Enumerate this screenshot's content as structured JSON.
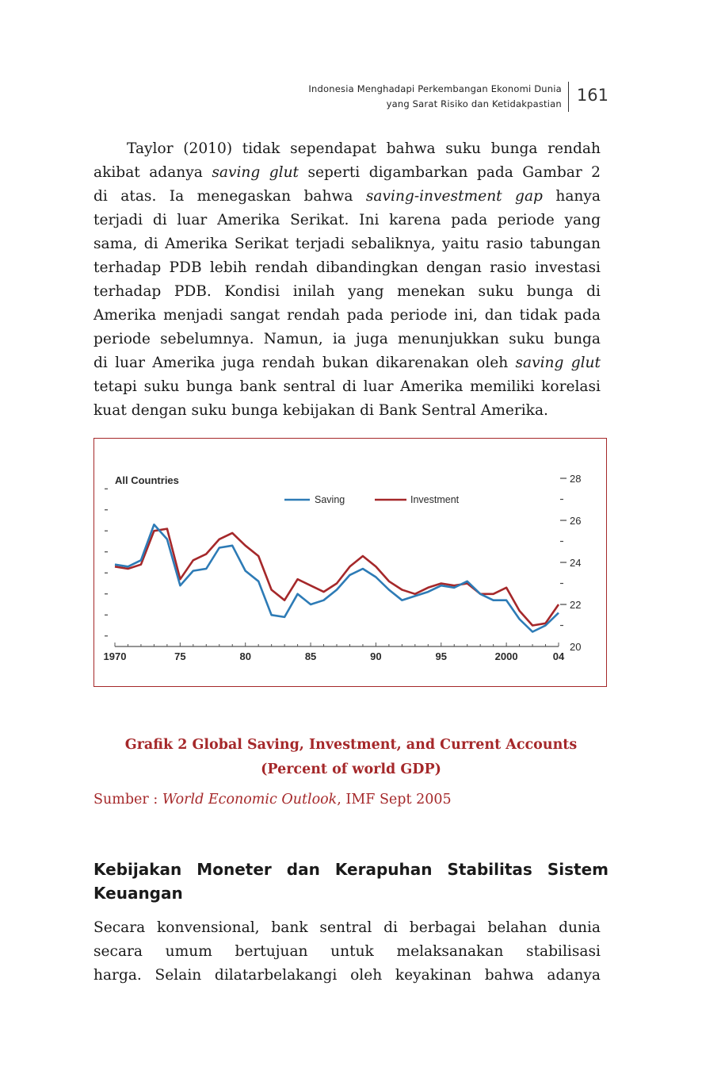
{
  "header": {
    "line1": "Indonesia Menghadapi Perkembangan Ekonomi Dunia",
    "line2": "yang Sarat Risiko dan Ketidakpastian",
    "page_number": "161"
  },
  "paragraph1": {
    "l1": "Taylor (2010) tidak sependapat bahwa suku bunga rendah",
    "l2a": "akibat adanya ",
    "l2b": "saving glut",
    "l2c": " seperti digambarkan pada Gambar 2",
    "l3a": "di atas. Ia menegaskan bahwa ",
    "l3b": "saving-investment gap",
    "l3c": " hanya",
    "l4": "terjadi di luar Amerika Serikat. Ini karena pada periode yang",
    "l5": "sama, di Amerika Serikat terjadi sebaliknya, yaitu rasio tabungan",
    "l6": "terhadap PDB lebih rendah dibandingkan dengan rasio investasi",
    "l7": "terhadap PDB. Kondisi inilah yang menekan suku bunga di",
    "l8": "Amerika menjadi sangat rendah pada periode ini, dan tidak pada",
    "l9": "periode sebelumnya. Namun, ia juga menunjukkan suku bunga",
    "l10a": "di luar Amerika juga rendah bukan dikarenakan oleh ",
    "l10b": "saving glut",
    "l11": "tetapi suku bunga bank sentral di luar Amerika memiliki korelasi",
    "l12": "kuat dengan suku bunga kebijakan di Bank Sentral Amerika."
  },
  "chart_data": {
    "type": "line",
    "title": "All Countries",
    "x": [
      1970,
      1971,
      1972,
      1973,
      1974,
      1975,
      1976,
      1977,
      1978,
      1979,
      1980,
      1981,
      1982,
      1983,
      1984,
      1985,
      1986,
      1987,
      1988,
      1989,
      1990,
      1991,
      1992,
      1993,
      1994,
      1995,
      1996,
      1997,
      1998,
      1999,
      2000,
      2001,
      2002,
      2003,
      2004
    ],
    "series": [
      {
        "name": "Saving",
        "color": "#2d7bb6",
        "values": [
          23.9,
          23.8,
          24.1,
          25.8,
          25.1,
          22.9,
          23.6,
          23.7,
          24.7,
          24.8,
          23.6,
          23.1,
          21.5,
          21.4,
          22.5,
          22.0,
          22.2,
          22.7,
          23.4,
          23.7,
          23.3,
          22.7,
          22.2,
          22.4,
          22.6,
          22.9,
          22.8,
          23.1,
          22.5,
          22.2,
          22.2,
          21.3,
          20.7,
          21.0,
          21.6
        ],
        "legend": "Saving"
      },
      {
        "name": "Investment",
        "color": "#a5282a",
        "values": [
          23.8,
          23.7,
          23.9,
          25.5,
          25.6,
          23.2,
          24.1,
          24.4,
          25.1,
          25.4,
          24.8,
          24.3,
          22.7,
          22.2,
          23.2,
          22.9,
          22.6,
          23.0,
          23.8,
          24.3,
          23.8,
          23.1,
          22.7,
          22.5,
          22.8,
          23.0,
          22.9,
          23.0,
          22.5,
          22.5,
          22.8,
          21.7,
          21.0,
          21.1,
          22.0
        ],
        "legend": "Investment"
      }
    ],
    "x_ticks": [
      "1970",
      "75",
      "80",
      "85",
      "90",
      "95",
      "2000",
      "04"
    ],
    "x_tick_years": [
      1970,
      1975,
      1980,
      1985,
      1990,
      1995,
      2000,
      2004
    ],
    "y_ticks": [
      "28",
      "26",
      "24",
      "22",
      "20"
    ],
    "y_tick_values": [
      28,
      26,
      24,
      22,
      20
    ],
    "ylim": [
      20,
      28
    ],
    "legend_position": "top-center"
  },
  "caption": {
    "line1": "Grafik 2 Global Saving, Investment, and Current Accounts",
    "line2": "(Percent of world GDP)"
  },
  "source": {
    "label": "Sumber : ",
    "title": "World Economic Outlook",
    "rest": ", IMF Sept 2005"
  },
  "section": {
    "title_line1": "Kebijakan Moneter dan Kerapuhan Stabilitas Sistem",
    "title_line2": "Keuangan"
  },
  "paragraph2": {
    "l1": "Secara konvensional, bank sentral di berbagai belahan dunia",
    "l2": "secara umum bertujuan untuk melaksanakan stabilisasi",
    "l3": "harga. Selain dilatarbelakangi oleh keyakinan bahwa adanya"
  }
}
